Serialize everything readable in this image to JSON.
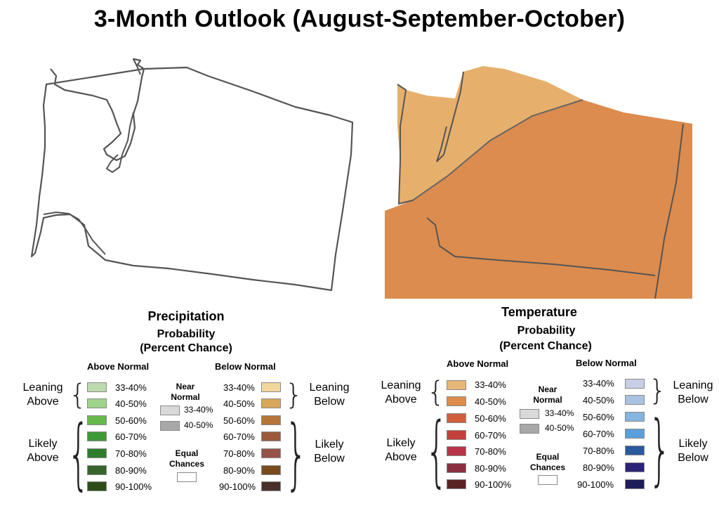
{
  "title": "3-Month Outlook (August-September-October)",
  "colors": {
    "above_normal_precip": [
      "#bcd9b0",
      "#9fd48c",
      "#67b94b",
      "#3f9a37",
      "#2e7d2e",
      "#35652a",
      "#2f4d18"
    ],
    "below_normal_precip": [
      "#f1d79b",
      "#d8a75a",
      "#b77539",
      "#9a5a3c",
      "#975347",
      "#7a4a1c",
      "#4a302a"
    ],
    "above_normal_temp": [
      "#e8b777",
      "#dd8c4c",
      "#d05e3c",
      "#c4403a",
      "#b83448",
      "#8a3141",
      "#5a2424"
    ],
    "below_normal_temp": [
      "#c8cee6",
      "#a8c2e0",
      "#84b4e0",
      "#5aa0dc",
      "#2a5a9e",
      "#2c2478",
      "#1e1c5a"
    ],
    "near_normal": [
      "#d9d9d9",
      "#a8a8a8"
    ],
    "temp_map_lean_above": "#e6b06c",
    "temp_map_above": "#dc8c4e"
  },
  "precipitation": {
    "title": "Precipitation",
    "subtitle1": "Probability",
    "subtitle2": "(Percent Chance)",
    "above_header": "Above Normal",
    "below_header": "Below Normal",
    "leaning_above": [
      "Leaning",
      "Above"
    ],
    "likely_above": [
      "Likely",
      "Above"
    ],
    "leaning_below": [
      "Leaning",
      "Below"
    ],
    "likely_below": [
      "Likely",
      "Below"
    ],
    "ranges": [
      "33-40%",
      "40-50%",
      "50-60%",
      "60-70%",
      "70-80%",
      "80-90%",
      "90-100%"
    ],
    "near_normal": [
      "Near",
      "Normal"
    ],
    "near_ranges": [
      "33-40%",
      "40-50%"
    ],
    "equal_chances": [
      "Equal",
      "Chances"
    ]
  },
  "temperature": {
    "title": "Temperature",
    "subtitle1": "Probability",
    "subtitle2": "(Percent Chance)",
    "above_header": "Above Normal",
    "below_header": "Below Normal",
    "leaning_above": [
      "Leaning",
      "Above"
    ],
    "likely_above": [
      "Likely",
      "Above"
    ],
    "leaning_below": [
      "Leaning",
      "Below"
    ],
    "likely_below": [
      "Likely",
      "Below"
    ],
    "ranges": [
      "33-40%",
      "40-50%",
      "50-60%",
      "60-70%",
      "70-80%",
      "80-90%",
      "90-100%"
    ],
    "near_normal": [
      "Near",
      "Normal"
    ],
    "near_ranges": [
      "33-40%",
      "40-50%"
    ],
    "equal_chances": [
      "Equal",
      "Chances"
    ]
  }
}
